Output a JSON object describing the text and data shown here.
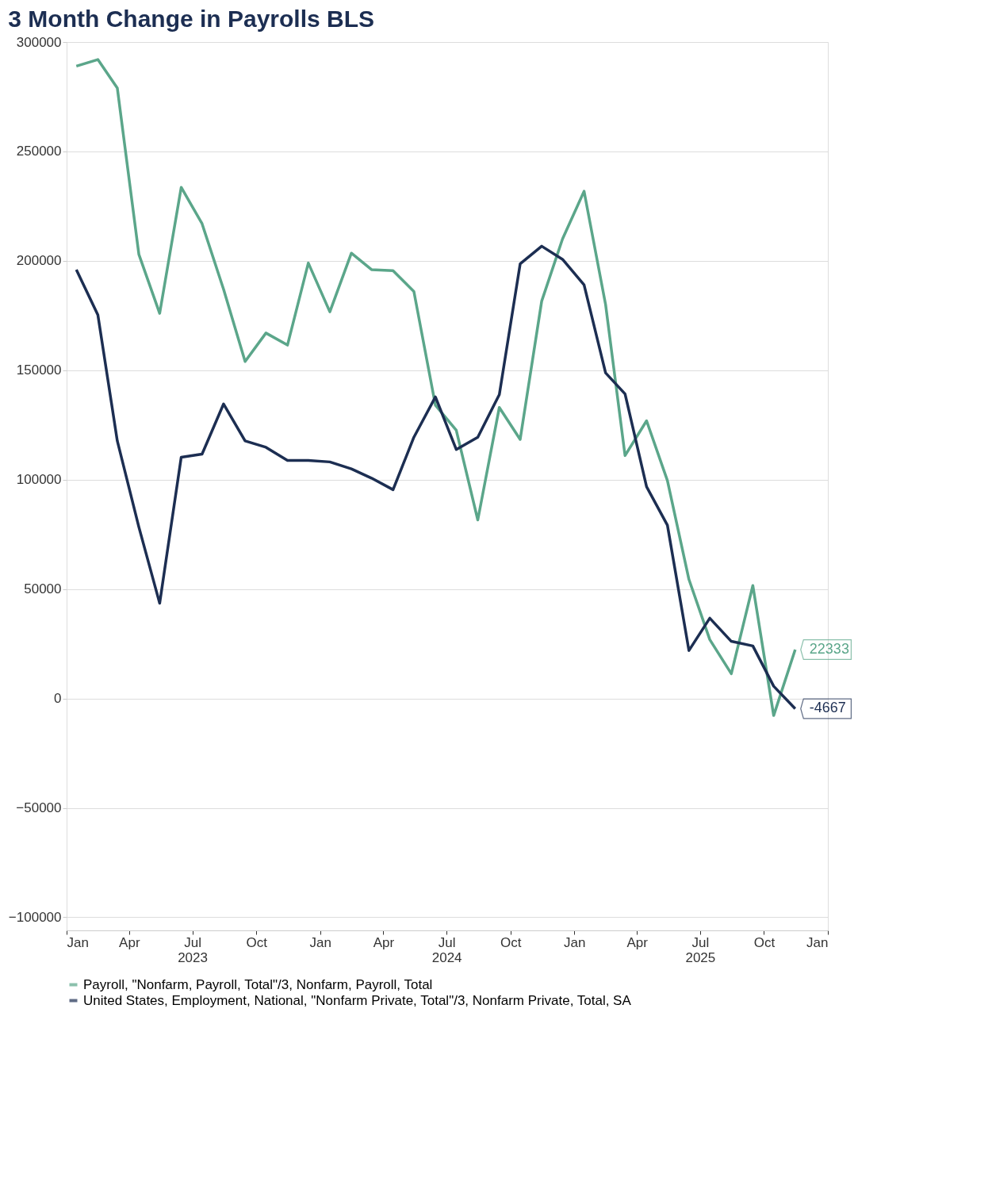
{
  "chart_data": {
    "type": "line",
    "title": "3 Month Change in Payrolls BLS",
    "x": [
      "2023-01-15",
      "2023-02-15",
      "2023-03-15",
      "2023-04-15",
      "2023-05-15",
      "2023-06-15",
      "2023-07-15",
      "2023-08-15",
      "2023-09-15",
      "2023-10-15",
      "2023-11-15",
      "2023-12-15",
      "2024-01-15",
      "2024-02-15",
      "2024-03-15",
      "2024-04-15",
      "2024-05-15",
      "2024-06-15",
      "2024-07-15",
      "2024-08-15",
      "2024-09-15",
      "2024-10-15",
      "2024-11-15",
      "2024-12-15",
      "2025-01-15",
      "2025-02-15",
      "2025-03-15",
      "2025-04-15",
      "2025-05-15",
      "2025-06-15",
      "2025-07-15",
      "2025-08-15",
      "2025-09-15",
      "2025-10-15",
      "2025-11-15"
    ],
    "series": [
      {
        "name": "Payroll, \"Nonfarm, Payroll, Total\"/3, Nonfarm, Payroll, Total",
        "color": "#5ba68a",
        "values": [
          289000,
          292000,
          279000,
          203000,
          176000,
          233600,
          217000,
          187000,
          154000,
          167000,
          161500,
          199000,
          176700,
          203500,
          196000,
          195500,
          186000,
          134000,
          122600,
          81600,
          133000,
          118400,
          181600,
          210000,
          231800,
          180000,
          111000,
          126900,
          99600,
          54400,
          26900,
          11300,
          51600,
          -7800,
          22333
        ],
        "value_labels": [
          null,
          null,
          null,
          null,
          null,
          null,
          null,
          null,
          null,
          null,
          null,
          null,
          null,
          null,
          null,
          null,
          null,
          null,
          null,
          null,
          null,
          null,
          null,
          null,
          null,
          null,
          null,
          null,
          null,
          null,
          null,
          null,
          null,
          null,
          "22333"
        ]
      },
      {
        "name": "United States, Employment, National, \"Nonfarm Private, Total\"/3, Nonfarm Private, Total, SA",
        "color": "#1c2e52",
        "values": [
          196000,
          175300,
          117700,
          78400,
          43500,
          110200,
          111700,
          134600,
          117700,
          114800,
          108800,
          108800,
          108100,
          104900,
          100700,
          95400,
          119400,
          137800,
          113800,
          119400,
          138900,
          198600,
          206700,
          200700,
          189000,
          148800,
          139200,
          96800,
          79200,
          21900,
          36700,
          26100,
          24000,
          5600,
          -4667
        ],
        "value_labels": [
          null,
          null,
          null,
          null,
          null,
          null,
          null,
          null,
          null,
          null,
          null,
          null,
          null,
          null,
          null,
          null,
          null,
          null,
          null,
          null,
          null,
          null,
          null,
          null,
          null,
          null,
          null,
          null,
          null,
          null,
          null,
          null,
          null,
          null,
          "-4667"
        ]
      }
    ],
    "xlim": [
      "2023-01-01",
      "2026-01-01"
    ],
    "xticks": [
      {
        "value": "2023-01-01",
        "label": "Jan"
      },
      {
        "value": "2023-04-01",
        "label": "Apr"
      },
      {
        "value": "2023-07-01",
        "label": "Jul\n2023"
      },
      {
        "value": "2023-10-01",
        "label": "Oct"
      },
      {
        "value": "2024-01-01",
        "label": "Jan"
      },
      {
        "value": "2024-04-01",
        "label": "Apr"
      },
      {
        "value": "2024-07-01",
        "label": "Jul\n2024"
      },
      {
        "value": "2024-10-01",
        "label": "Oct"
      },
      {
        "value": "2025-01-01",
        "label": "Jan"
      },
      {
        "value": "2025-04-01",
        "label": "Apr"
      },
      {
        "value": "2025-07-01",
        "label": "Jul\n2025"
      },
      {
        "value": "2025-10-01",
        "label": "Oct"
      },
      {
        "value": "2026-01-01",
        "label": "Jan"
      }
    ],
    "ylim": [
      -106000,
      300000
    ],
    "yticks": [
      -100000,
      -50000,
      0,
      50000,
      100000,
      150000,
      200000,
      250000,
      300000
    ],
    "grid": "y",
    "legend": "bottom",
    "marker": "none",
    "line_style": "solid"
  }
}
